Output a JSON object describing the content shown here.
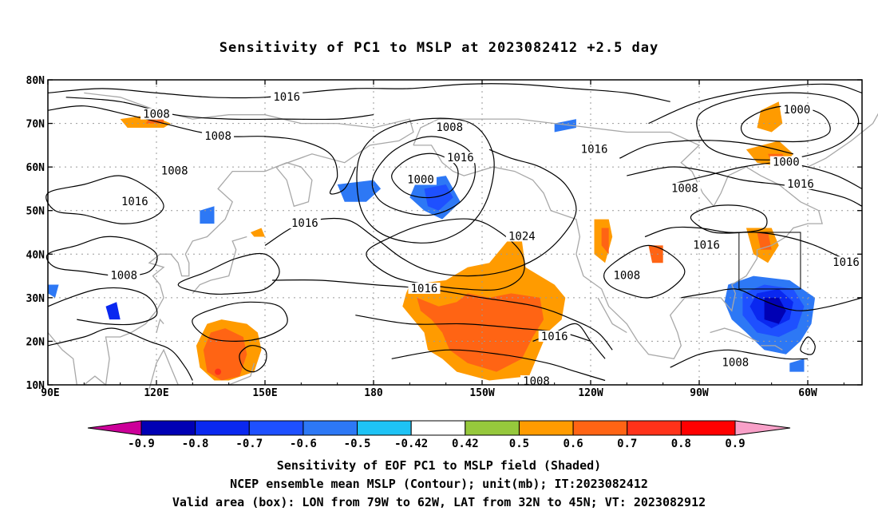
{
  "title": "Sensitivity of PC1 to MSLP at 2023082412 +2.5 day",
  "chart_data": {
    "type": "heatmap",
    "title": "Sensitivity of PC1 to MSLP at 2023082412 +2.5 day",
    "x_ticks": [
      "90E",
      "120E",
      "150E",
      "180",
      "150W",
      "120W",
      "90W",
      "60W"
    ],
    "y_ticks": [
      "80N",
      "70N",
      "60N",
      "50N",
      "40N",
      "30N",
      "20N",
      "10N"
    ],
    "lon_range": [
      90,
      315
    ],
    "lat_range": [
      10,
      80
    ],
    "colorbar": {
      "labels": [
        "-0.9",
        "-0.8",
        "-0.7",
        "-0.6",
        "-0.5",
        "-0.42",
        "0.42",
        "0.5",
        "0.6",
        "0.7",
        "0.8",
        "0.9"
      ],
      "colors": [
        "#cc0099",
        "#0000b4",
        "#0a28f0",
        "#1e50ff",
        "#2d78f5",
        "#1ec3f5",
        "#ffffff",
        "#96c83c",
        "#ff9b00",
        "#ff6414",
        "#ff3219",
        "#ff0000",
        "#f8a0c8"
      ]
    },
    "contour_labels": [
      {
        "text": "1016",
        "lon": 156,
        "lat": 76
      },
      {
        "text": "1008",
        "lon": 120,
        "lat": 72
      },
      {
        "text": "1008",
        "lon": 137,
        "lat": 67
      },
      {
        "text": "1008",
        "lon": 125,
        "lat": 59
      },
      {
        "text": "1008",
        "lon": 201,
        "lat": 69
      },
      {
        "text": "1000",
        "lon": 193,
        "lat": 57
      },
      {
        "text": "1016",
        "lon": 204,
        "lat": 62
      },
      {
        "text": "1016",
        "lon": 241,
        "lat": 64
      },
      {
        "text": "1000",
        "lon": 297,
        "lat": 73
      },
      {
        "text": "1000",
        "lon": 294,
        "lat": 61
      },
      {
        "text": "1016",
        "lon": 298,
        "lat": 56
      },
      {
        "text": "1008",
        "lon": 266,
        "lat": 55
      },
      {
        "text": "1016",
        "lon": 114,
        "lat": 52
      },
      {
        "text": "1016",
        "lon": 161,
        "lat": 47
      },
      {
        "text": "1024",
        "lon": 221,
        "lat": 44
      },
      {
        "text": "1016",
        "lon": 272,
        "lat": 42
      },
      {
        "text": "1016",
        "lon": 319,
        "lat": 38
      },
      {
        "text": "1008",
        "lon": 111,
        "lat": 35
      },
      {
        "text": "1008",
        "lon": 250,
        "lat": 35
      },
      {
        "text": "1016",
        "lon": 194,
        "lat": 32
      },
      {
        "text": "1016",
        "lon": 230,
        "lat": 21
      },
      {
        "text": "1008",
        "lon": 280,
        "lat": 15
      },
      {
        "text": "1008",
        "lon": 225,
        "lat": 10
      }
    ],
    "valid_box": {
      "lon": [
        281,
        298
      ],
      "lat": [
        32,
        45
      ]
    },
    "shaded_regions": [
      {
        "category": "0.5",
        "lon": [
          189,
          220
        ],
        "lat": [
          11,
          30
        ]
      },
      {
        "category": "0.6",
        "lon": [
          202,
          235
        ],
        "lat": [
          13,
          30
        ]
      },
      {
        "category": "-0.5",
        "lon": [
          278,
          302
        ],
        "lat": [
          18,
          34
        ]
      },
      {
        "category": "-0.8",
        "lon": [
          285,
          297
        ],
        "lat": [
          22,
          32
        ]
      }
    ]
  },
  "caption": {
    "line1": "Sensitivity of EOF PC1 to MSLP field (Shaded)",
    "line2": "NCEP ensemble mean MSLP (Contour); unit(mb); IT:2023082412",
    "line3": "Valid area (box): LON from 79W to 62W, LAT from 32N to 45N; VT: 2023082912"
  }
}
